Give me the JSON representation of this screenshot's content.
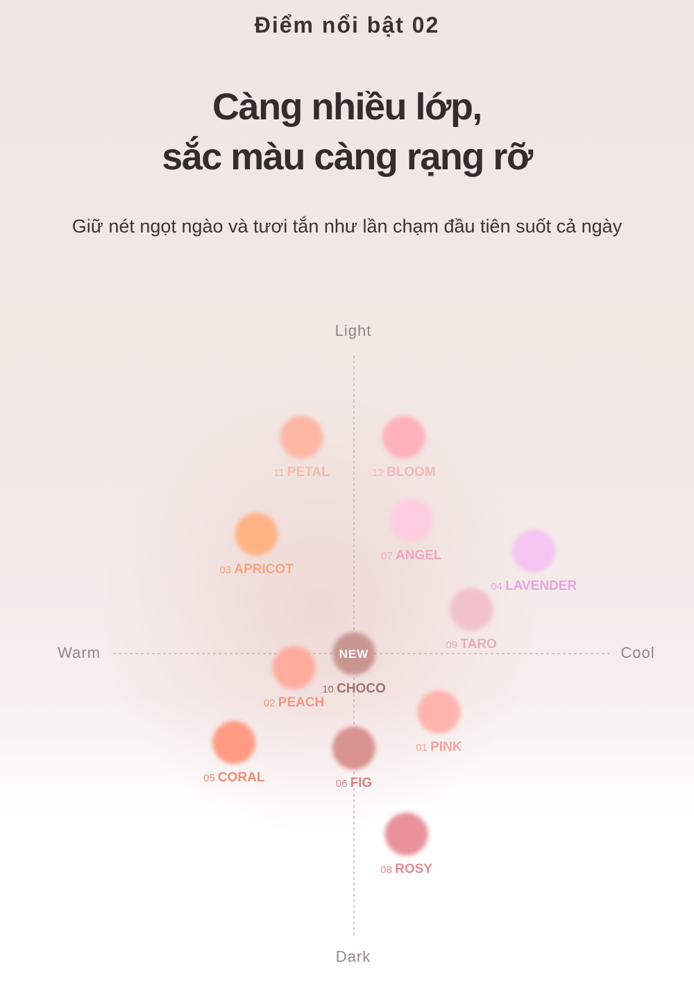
{
  "header": {
    "eyebrow": "Điểm nổi bật 02",
    "headline_line1": "Càng nhiều lớp,",
    "headline_line2": "sắc màu càng rạng rỡ",
    "subtitle": "Giữ nét ngọt ngào và tươi tắn như lần chạm đầu tiên suốt cả ngày"
  },
  "chart_data": {
    "type": "scatter",
    "title": "",
    "axes": {
      "top": "Light",
      "bottom": "Dark",
      "left": "Warm",
      "right": "Cool"
    },
    "xlim": [
      -10,
      10
    ],
    "ylim": [
      -10,
      10
    ],
    "x_meaning": "warm (-) to cool (+)",
    "y_meaning": "dark (-) to light (+)",
    "points": [
      {
        "num": "11",
        "name": "PETAL",
        "x": -2.1,
        "y": 7.8,
        "color": "#fdb8a4",
        "label_color": "#f6b9a5",
        "label_side": "below"
      },
      {
        "num": "12",
        "name": "BLOOM",
        "x": 2.0,
        "y": 7.8,
        "color": "#ffb2bb",
        "label_color": "#f6b8bd",
        "label_side": "below"
      },
      {
        "num": "07",
        "name": "ANGEL",
        "x": 2.3,
        "y": 4.8,
        "color": "#ffcde0",
        "label_color": "#f0a7be",
        "label_side": "below"
      },
      {
        "num": "03",
        "name": "APRICOT",
        "x": -3.9,
        "y": 4.3,
        "color": "#ffb385",
        "label_color": "#f4a57c",
        "label_side": "below"
      },
      {
        "num": "04",
        "name": "LAVENDER",
        "x": 7.2,
        "y": 3.7,
        "color": "#f5c4f1",
        "label_color": "#e8a2e3",
        "label_side": "below"
      },
      {
        "num": "09",
        "name": "TARO",
        "x": 4.7,
        "y": 1.6,
        "color": "#f2c2cc",
        "label_color": "#e7adb7",
        "label_side": "below"
      },
      {
        "num": "10",
        "name": "CHOCO",
        "x": 0.0,
        "y": 0.0,
        "color": "#c99591",
        "label_color": "#a2726e",
        "label_side": "below",
        "badge": "NEW"
      },
      {
        "num": "02",
        "name": "PEACH",
        "x": -2.4,
        "y": -0.5,
        "color": "#ffac9e",
        "label_color": "#f29682",
        "label_side": "below"
      },
      {
        "num": "01",
        "name": "PINK",
        "x": 3.4,
        "y": -2.1,
        "color": "#ffb3ae",
        "label_color": "#f4a2a0",
        "label_side": "below"
      },
      {
        "num": "05",
        "name": "CORAL",
        "x": -4.8,
        "y": -3.2,
        "color": "#ff9a83",
        "label_color": "#f08c74",
        "label_side": "below"
      },
      {
        "num": "06",
        "name": "FIG",
        "x": 0.0,
        "y": -3.4,
        "color": "#d99390",
        "label_color": "#cd8683",
        "label_side": "below"
      },
      {
        "num": "08",
        "name": "ROSY",
        "x": 2.1,
        "y": -6.5,
        "color": "#e8919a",
        "label_color": "#e38a95",
        "label_side": "below"
      }
    ]
  }
}
